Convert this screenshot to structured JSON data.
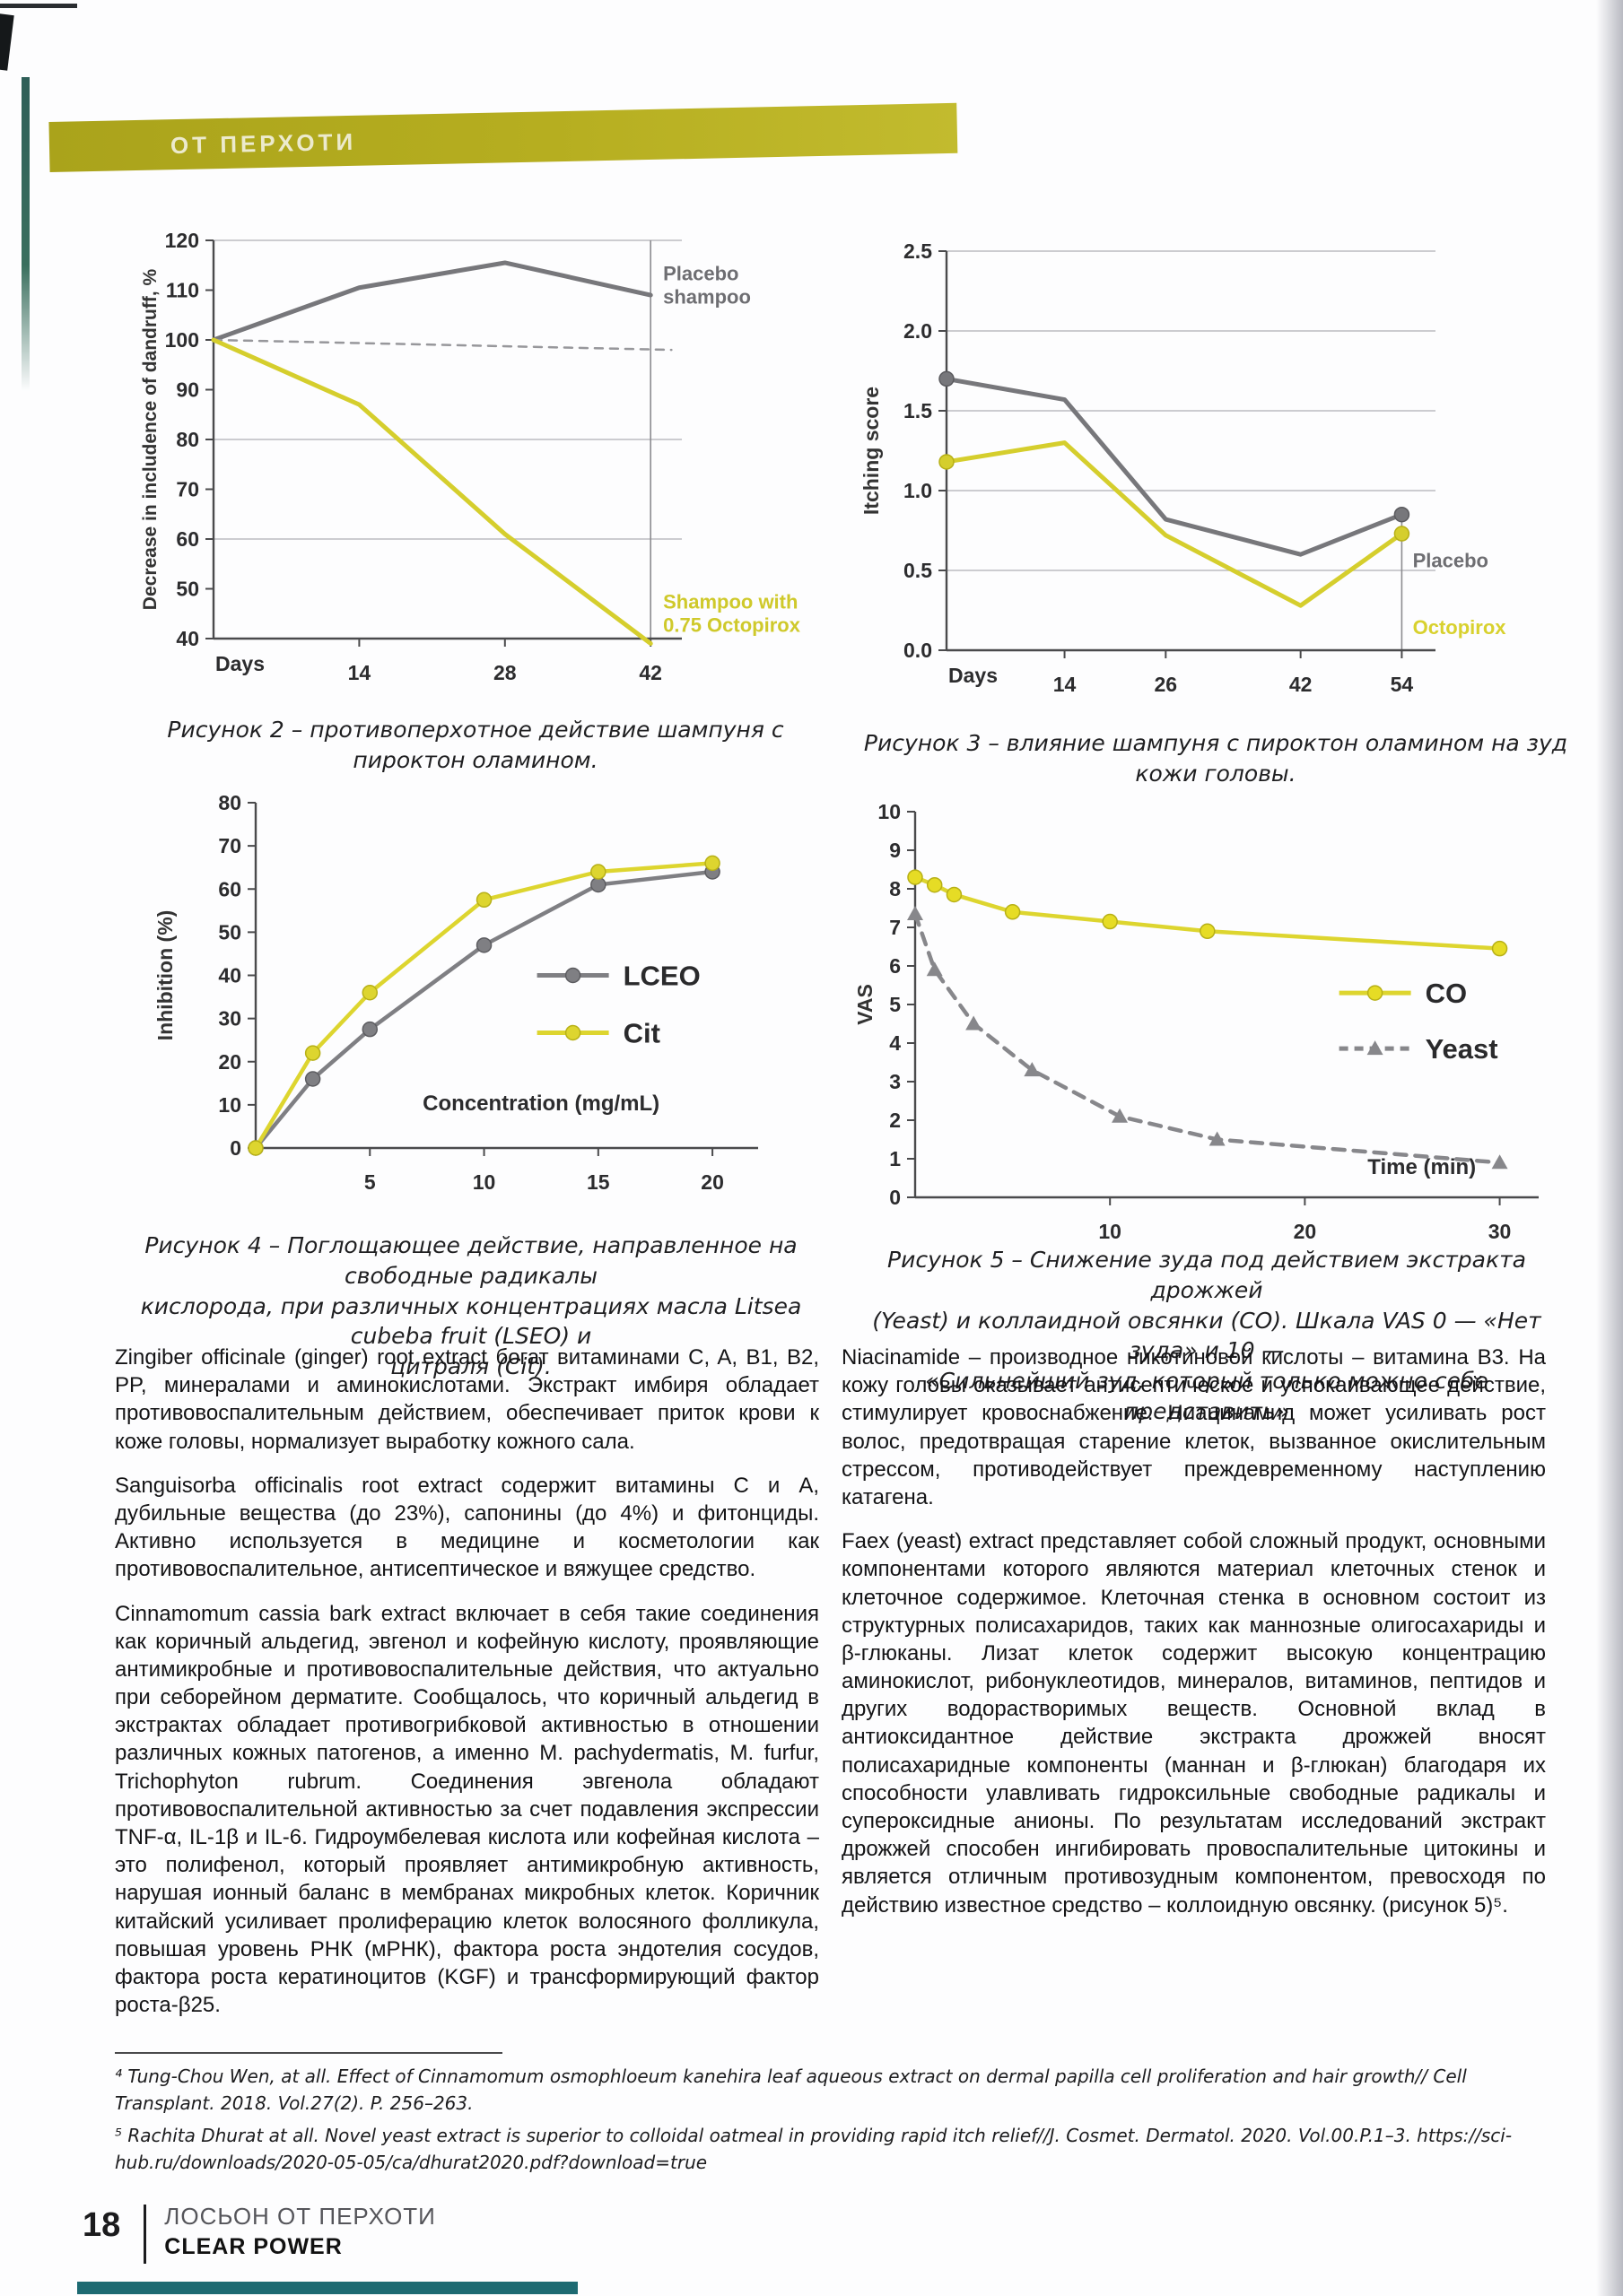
{
  "header": {
    "band_label": "ОТ ПЕРХОТИ"
  },
  "figures": {
    "fig2": {
      "caption": "Рисунок 2 – противоперхотное действие шампуня с пироктон оламином."
    },
    "fig3": {
      "caption": "Рисунок 3 – влияние шампуня с пироктон оламином на зуд кожи головы."
    },
    "fig4": {
      "caption": "Рисунок 4 – Поглощающее действие, направленное на свободные радикалы\nкислорода, при различных концентрациях масла Litsea cubeba fruit (LSEO) и\nцитраля (Cit)."
    },
    "fig5": {
      "caption": "Рисунок 5 – Снижение зуда под действием экстракта дрожжей\n(Yeast) и коллаидной овсянки (СО). Шкала VAS 0 — «Нет зуда» и 10 —\n«Сильнейший зуд, который только можно себе представить»"
    }
  },
  "chart_data": [
    {
      "id": "fig2",
      "type": "line",
      "ylabel": "Decrease in includence of dandruff, %",
      "ylabel_size": 21,
      "xlabel": "Days",
      "xlabel_pos": "origin",
      "xlim": [
        0,
        45
      ],
      "ylim": [
        40,
        120
      ],
      "yticks": [
        {
          "v": 40,
          "label": "40"
        },
        {
          "v": 50,
          "label": "50"
        },
        {
          "v": 60,
          "label": "60"
        },
        {
          "v": 70,
          "label": "70"
        },
        {
          "v": 80,
          "label": "80"
        },
        {
          "v": 90,
          "label": "90"
        },
        {
          "v": 100,
          "label": "100"
        },
        {
          "v": 110,
          "label": "110"
        },
        {
          "v": 120,
          "label": "120"
        }
      ],
      "xticks": [
        {
          "v": 14,
          "label": "14"
        },
        {
          "v": 28,
          "label": "28"
        },
        {
          "v": 42,
          "label": "42"
        }
      ],
      "grid": [
        {
          "v": 120
        },
        {
          "v": 80
        },
        {
          "v": 60
        }
      ],
      "vlines": [
        {
          "x": 42,
          "y1": 40,
          "y2": 120
        }
      ],
      "series": [
        {
          "name": "Placebo shampoo",
          "color": "#77777b",
          "width": 5,
          "marker_mode": "none",
          "points": [
            [
              0,
              100
            ],
            [
              14,
              110.5
            ],
            [
              28,
              115.5
            ],
            [
              42,
              109
            ]
          ]
        },
        {
          "name": "Baseline 100%",
          "color": "#97979b",
          "width": 2.5,
          "dash": "9,8",
          "marker_mode": "none",
          "points": [
            [
              0,
              100
            ],
            [
              44,
              98
            ]
          ]
        },
        {
          "name": "Shampoo with 0.75 Octopirox",
          "color": "#d5ce2d",
          "width": 5,
          "marker_mode": "none",
          "points": [
            [
              0,
              100
            ],
            [
              14,
              87
            ],
            [
              28,
              61
            ],
            [
              42,
              39
            ]
          ]
        }
      ],
      "annotations": [
        {
          "x": 43.2,
          "y": 112,
          "lines": [
            "Placebo",
            "shampoo"
          ],
          "color": "#6e6e72"
        },
        {
          "x": 43.2,
          "y": 46,
          "lines": [
            "Shampoo with",
            "0.75 Octopirox"
          ],
          "color": "#cfc92b"
        }
      ]
    },
    {
      "id": "fig3",
      "type": "line",
      "ylabel": "Itching score",
      "xlabel": "Days",
      "xlabel_pos": "origin",
      "xlim": [
        0,
        58
      ],
      "ylim": [
        0,
        2.5
      ],
      "yticks": [
        {
          "v": 0,
          "label": "0.0"
        },
        {
          "v": 0.5,
          "label": "0.5"
        },
        {
          "v": 1,
          "label": "1.0"
        },
        {
          "v": 1.5,
          "label": "1.5"
        },
        {
          "v": 2,
          "label": "2.0"
        },
        {
          "v": 2.5,
          "label": "2.5"
        }
      ],
      "xticks": [
        {
          "v": 14,
          "label": "14"
        },
        {
          "v": 26,
          "label": "26"
        },
        {
          "v": 42,
          "label": "42"
        },
        {
          "v": 54,
          "label": "54"
        }
      ],
      "grid": [
        {
          "v": 2.5
        },
        {
          "v": 2
        },
        {
          "v": 1.5
        },
        {
          "v": 1
        },
        {
          "v": 0.5
        }
      ],
      "vlines": [
        {
          "x": 54,
          "y1": 0,
          "y2": 0.85
        }
      ],
      "series": [
        {
          "name": "Placebo",
          "color": "#77777b",
          "width": 5,
          "marker_mode": "ends",
          "marker": "circle",
          "mstroke": "#5a5a5e",
          "points": [
            [
              0,
              1.7
            ],
            [
              14,
              1.57
            ],
            [
              26,
              0.82
            ],
            [
              42,
              0.6
            ],
            [
              54,
              0.85
            ]
          ]
        },
        {
          "name": "Octopirox",
          "color": "#d5ce2d",
          "width": 5,
          "marker_mode": "ends",
          "marker": "circle",
          "mstroke": "#b7b017",
          "points": [
            [
              0,
              1.18
            ],
            [
              14,
              1.3
            ],
            [
              26,
              0.72
            ],
            [
              42,
              0.28
            ],
            [
              54,
              0.73
            ]
          ]
        }
      ],
      "annotations": [
        {
          "x": 55.3,
          "y": 0.52,
          "lines": [
            "Placebo"
          ],
          "color": "#6e6e72"
        },
        {
          "x": 55.3,
          "y": 0.1,
          "lines": [
            "Octopirox"
          ],
          "color": "#d8d12e"
        }
      ]
    },
    {
      "id": "fig4",
      "type": "line",
      "ylabel": "Inhibition (%)",
      "ylabel_x": 42,
      "xlabel": "Concentration (mg/mL)",
      "xlabel_pos": "inside",
      "xlabel_x": 12.5,
      "xlabel_dy": 42,
      "xlim": [
        0,
        22
      ],
      "ylim": [
        0,
        80
      ],
      "yticks": [
        {
          "v": 0,
          "label": "0"
        },
        {
          "v": 10,
          "label": "10"
        },
        {
          "v": 20,
          "label": "20"
        },
        {
          "v": 30,
          "label": "30"
        },
        {
          "v": 40,
          "label": "40"
        },
        {
          "v": 50,
          "label": "50"
        },
        {
          "v": 60,
          "label": "60"
        },
        {
          "v": 70,
          "label": "70"
        },
        {
          "v": 80,
          "label": "80"
        }
      ],
      "xticks": [
        {
          "v": 5,
          "label": "5"
        },
        {
          "v": 10,
          "label": "10"
        },
        {
          "v": 15,
          "label": "15"
        },
        {
          "v": 20,
          "label": "20"
        }
      ],
      "series": [
        {
          "name": "LCEO",
          "color": "#7f7f83",
          "width": 4.5,
          "marker_mode": "all",
          "marker": "circle",
          "mfill": "#7f7f83",
          "mstroke": "#5c5c60",
          "points": [
            [
              0,
              0
            ],
            [
              2.5,
              16
            ],
            [
              5,
              27.5
            ],
            [
              10,
              47
            ],
            [
              15,
              61
            ],
            [
              20,
              64
            ]
          ]
        },
        {
          "name": "Cit",
          "color": "#ddd52f",
          "width": 4.5,
          "marker_mode": "all",
          "marker": "circle",
          "mfill": "#ddd52f",
          "mstroke": "#b7b017",
          "points": [
            [
              0,
              0
            ],
            [
              2.5,
              22
            ],
            [
              5,
              36
            ],
            [
              10,
              57.5
            ],
            [
              15,
              64
            ],
            [
              20,
              66
            ]
          ]
        }
      ],
      "legend": {
        "fx": 0.56,
        "fy": 0.5,
        "gap": 64,
        "entries": [
          {
            "label": "LCEO",
            "series": 0
          },
          {
            "label": "Cit",
            "series": 1
          }
        ]
      }
    },
    {
      "id": "fig5",
      "type": "line",
      "ylabel": "VAS",
      "ylabel_x": 22,
      "xlabel": "Time (min)",
      "xlabel_pos": "inside",
      "xlabel_x": 26,
      "xlabel_dy": 26,
      "xlim": [
        0,
        32
      ],
      "ylim": [
        0,
        10
      ],
      "yticks": [
        {
          "v": 0,
          "label": "0"
        },
        {
          "v": 1,
          "label": "1"
        },
        {
          "v": 2,
          "label": "2"
        },
        {
          "v": 3,
          "label": "3"
        },
        {
          "v": 4,
          "label": "4"
        },
        {
          "v": 5,
          "label": "5"
        },
        {
          "v": 6,
          "label": "6"
        },
        {
          "v": 7,
          "label": "7"
        },
        {
          "v": 8,
          "label": "8"
        },
        {
          "v": 9,
          "label": "9"
        },
        {
          "v": 10,
          "label": "10"
        }
      ],
      "xticks": [
        {
          "v": 10,
          "label": "10"
        },
        {
          "v": 20,
          "label": "20"
        },
        {
          "v": 30,
          "label": "30"
        }
      ],
      "series": [
        {
          "name": "CO",
          "color": "#ddd52f",
          "width": 4.5,
          "marker_mode": "all",
          "marker": "circle",
          "mfill": "#e6dc25",
          "mstroke": "#b7b017",
          "points": [
            [
              0,
              8.3
            ],
            [
              1,
              8.1
            ],
            [
              2,
              7.85
            ],
            [
              5,
              7.4
            ],
            [
              10,
              7.15
            ],
            [
              15,
              6.9
            ],
            [
              30,
              6.45
            ]
          ]
        },
        {
          "name": "Yeast",
          "color": "#87878b",
          "width": 4.5,
          "dash": "13,10",
          "marker_mode": "all",
          "marker": "triangle",
          "mfill": "#87878b",
          "points": [
            [
              0,
              7.35
            ],
            [
              1,
              5.9
            ],
            [
              3,
              4.5
            ],
            [
              6,
              3.3
            ],
            [
              10.5,
              2.1
            ],
            [
              15.5,
              1.5
            ],
            [
              30,
              0.9
            ]
          ]
        }
      ],
      "legend": {
        "fx": 0.68,
        "fy": 0.47,
        "gap": 62,
        "entries": [
          {
            "label": "CO",
            "series": 0
          },
          {
            "label": "Yeast",
            "series": 1
          }
        ]
      }
    }
  ],
  "body": {
    "left_paragraphs": [
      "Zingiber officinale (ginger) root extract богат витаминами C, A, B1, B2, PP, минералами и аминокислотами. Экстракт имбиря обладает противовоспалительным действием, обеспечивает приток крови к коже головы, нормализует выработку кожного сала.",
      "Sanguisorba officinalis root extract содержит витамины C и A, дубильные вещества (до 23%), сапонины (до 4%) и фитонциды. Активно используется в медицине и косметологии как противовоспалительное, антисептическое и вяжущее средство.",
      "Cinnamomum cassia bark extract включает в себя такие соединения как коричный альдегид, эвгенол и кофейную кислоту, проявляющие антимикробные и противовоспалительные действия, что актуально при себорейном дерматите. Сообщалось, что коричный альдегид в экстрактах обладает противогрибковой активностью в отношении различных кожных патогенов, а именно M. pachydermatis, M. furfur, Trichophyton rubrum. Соединения эвгенола обладают противовоспалительной активностью за счет подавления экспрессии TNF-α, IL-1β и IL-6. Гидроумбелевая кислота или кофейная кислота – это полифенол, который проявляет антимикробную активность, нарушая ионный баланс в мембранах микробных клеток. Коричник китайский усиливает пролиферацию клеток волосяного фолликула, повышая уровень РНК (мРНК), фактора роста эндотелия сосудов, фактора роста кератиноцитов (KGF) и трансформирующий фактор роста-β25."
    ],
    "right_paragraphs": [
      "Niacinamide – производное никотиновой кислоты – витамина B3. На кожу головы оказывает антисептическое и успокаивающее действие, стимулирует кровоснабжение. Ниацинамид может усиливать рост волос, предотвращая старение клеток, вызванное окислительным стрессом, противодействует преждевременному наступлению катагена.",
      "Faex (yeast) extract представляет собой сложный продукт, основными компонентами которого являются материал клеточных стенок и клеточное содержимое. Клеточная стенка в основном состоит из структурных полисахаридов, таких как маннозные олигосахариды и β-глюканы. Лизат клеток содержит высокую концентрацию аминокислот, рибонуклеотидов, минералов, витаминов, пептидов и других водорастворимых веществ. Основной вклад в антиоксидантное действие экстракта дрожжей вносят полисахаридные компоненты (маннан и β-глюкан) благодаря их способности улавливать гидроксильные свободные радикалы и супероксидные анионы. По результатам исследований экстракт дрожжей способен ингибировать провоспалительные цитокины и является отличным противозудным компонентом, превосходя по действию известное средство – коллоидную овсянку. (рисунок 5)⁵."
    ]
  },
  "footnotes": [
    "⁴ Tung-Chou Wen, at all. Effect of Cinnamomum osmophloeum kanehira leaf aqueous extract on dermal papilla cell proliferation and hair growth// Cell Transplant. 2018. Vol.27(2). P. 256–263.",
    "⁵ Rachita Dhurat at all. Novel yeast extract is superior to colloidal oatmeal in providing rapid itch relief//J. Cosmet. Dermatol. 2020. Vol.00.P.1–3. https://sci-hub.ru/downloads/2020-05-05/ca/dhurat2020.pdf?download=true"
  ],
  "footer": {
    "page_number": "18",
    "section": "ЛОСЬОН ОТ ПЕРХОТИ",
    "product": "CLEAR POWER"
  },
  "colors": {
    "header_olive": "#b3ab1f",
    "accent_yellow": "#d5ce2d",
    "line_gray": "#77777b",
    "footer_teal": "#1d6a72"
  }
}
